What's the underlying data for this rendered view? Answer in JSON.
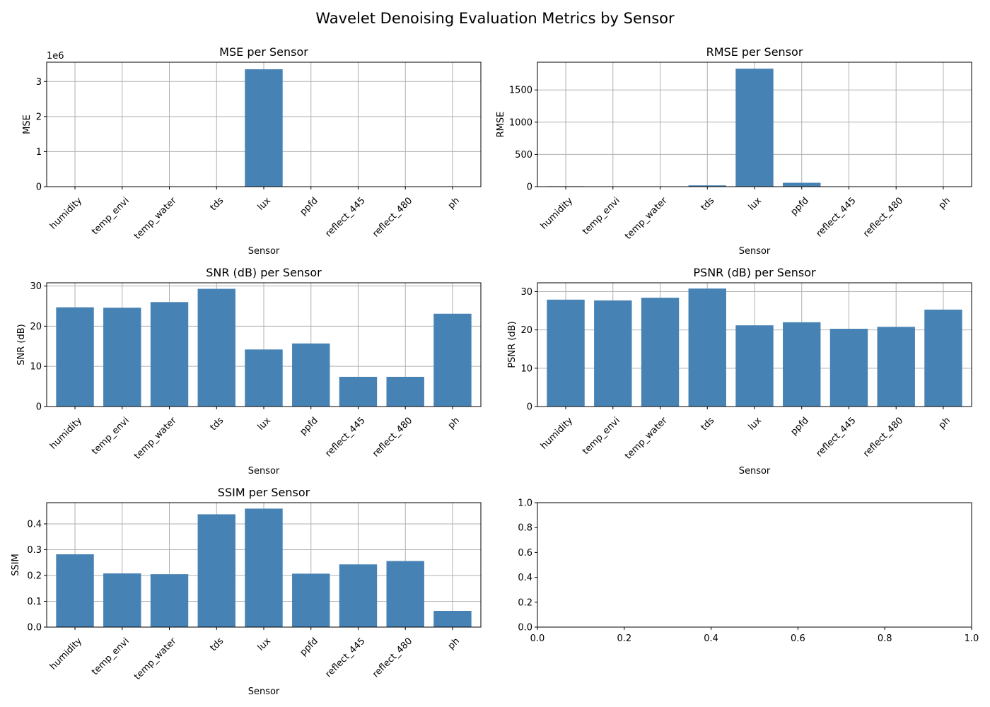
{
  "suptitle": "Wavelet Denoising Evaluation Metrics by Sensor",
  "colors": {
    "bar": "#4682b4",
    "grid": "#b0b0b0",
    "axis": "#000000"
  },
  "chart_data": [
    {
      "type": "bar",
      "title": "MSE per Sensor",
      "xlabel": "Sensor",
      "ylabel": "MSE",
      "offset_text": "1e6",
      "grid": true,
      "categories": [
        "humidity",
        "temp_envi",
        "temp_water",
        "tds",
        "lux",
        "ppfd",
        "reflect_445",
        "reflect_480",
        "ph"
      ],
      "values": [
        30,
        5,
        3,
        400,
        3350000,
        3600,
        1,
        1,
        2
      ],
      "ylim": [
        0,
        3550000
      ],
      "yticks": [
        0,
        1000000,
        2000000,
        3000000
      ],
      "ytick_labels": [
        "0",
        "1",
        "2",
        "3"
      ]
    },
    {
      "type": "bar",
      "title": "RMSE per Sensor",
      "xlabel": "Sensor",
      "ylabel": "RMSE",
      "grid": true,
      "categories": [
        "humidity",
        "temp_envi",
        "temp_water",
        "tds",
        "lux",
        "ppfd",
        "reflect_445",
        "reflect_480",
        "ph"
      ],
      "values": [
        7,
        2,
        2,
        20,
        1830,
        60,
        1,
        1,
        1
      ],
      "ylim": [
        0,
        1930
      ],
      "yticks": [
        0,
        500,
        1000,
        1500
      ],
      "ytick_labels": [
        "0",
        "500",
        "1000",
        "1500"
      ]
    },
    {
      "type": "bar",
      "title": "SNR (dB) per Sensor",
      "xlabel": "Sensor",
      "ylabel": "SNR (dB)",
      "grid": true,
      "categories": [
        "humidity",
        "temp_envi",
        "temp_water",
        "tds",
        "lux",
        "ppfd",
        "reflect_445",
        "reflect_480",
        "ph"
      ],
      "values": [
        24.7,
        24.6,
        26.0,
        29.3,
        14.2,
        15.7,
        7.4,
        7.4,
        23.1
      ],
      "ylim": [
        0,
        30.8
      ],
      "yticks": [
        0,
        10,
        20,
        30
      ],
      "ytick_labels": [
        "0",
        "10",
        "20",
        "30"
      ]
    },
    {
      "type": "bar",
      "title": "PSNR (dB) per Sensor",
      "xlabel": "Sensor",
      "ylabel": "PSNR (dB)",
      "grid": true,
      "categories": [
        "humidity",
        "temp_envi",
        "temp_water",
        "tds",
        "lux",
        "ppfd",
        "reflect_445",
        "reflect_480",
        "ph"
      ],
      "values": [
        27.9,
        27.7,
        28.4,
        30.8,
        21.2,
        22.0,
        20.3,
        20.8,
        25.3
      ],
      "ylim": [
        0,
        32.3
      ],
      "yticks": [
        0,
        10,
        20,
        30
      ],
      "ytick_labels": [
        "0",
        "10",
        "20",
        "30"
      ]
    },
    {
      "type": "bar",
      "title": "SSIM per Sensor",
      "xlabel": "Sensor",
      "ylabel": "SSIM",
      "grid": true,
      "categories": [
        "humidity",
        "temp_envi",
        "temp_water",
        "tds",
        "lux",
        "ppfd",
        "reflect_445",
        "reflect_480",
        "ph"
      ],
      "values": [
        0.282,
        0.208,
        0.205,
        0.437,
        0.459,
        0.207,
        0.243,
        0.256,
        0.063
      ],
      "ylim": [
        0,
        0.482
      ],
      "yticks": [
        0,
        0.1,
        0.2,
        0.3,
        0.4
      ],
      "ytick_labels": [
        "0.0",
        "0.1",
        "0.2",
        "0.3",
        "0.4"
      ]
    },
    {
      "type": "empty",
      "grid": false,
      "xlim": [
        0,
        1
      ],
      "ylim": [
        0,
        1
      ],
      "xticks": [
        0,
        0.2,
        0.4,
        0.6,
        0.8,
        1.0
      ],
      "xtick_labels": [
        "0.0",
        "0.2",
        "0.4",
        "0.6",
        "0.8",
        "1.0"
      ],
      "yticks": [
        0,
        0.2,
        0.4,
        0.6,
        0.8,
        1.0
      ],
      "ytick_labels": [
        "0.0",
        "0.2",
        "0.4",
        "0.6",
        "0.8",
        "1.0"
      ]
    }
  ]
}
